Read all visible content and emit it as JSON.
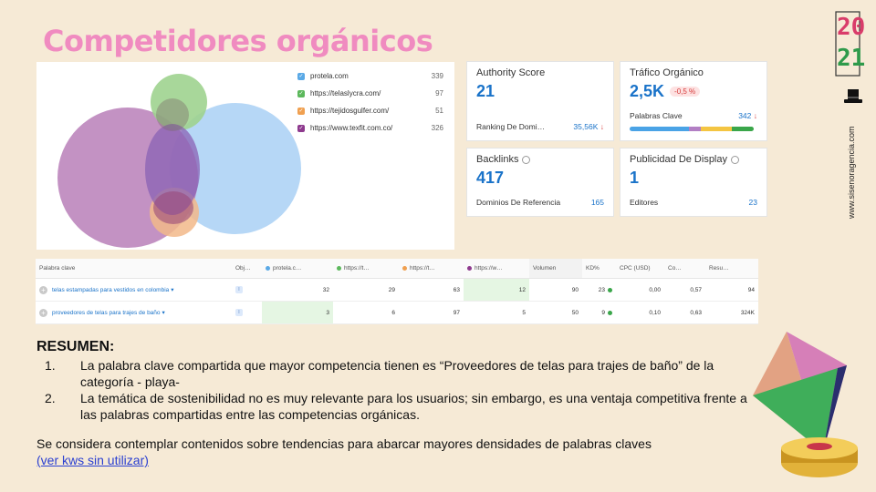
{
  "slide": {
    "title": "Competidores orgánicos",
    "year_top": "20",
    "year_bottom": "21",
    "vertical_url": "www.sisenoragencia.com"
  },
  "venn": {
    "competitors": [
      {
        "domain": "protela.com",
        "count": "339",
        "color": "#5aa9e6"
      },
      {
        "domain": "https://telaslycra.com/",
        "count": "97",
        "color": "#5cb85c"
      },
      {
        "domain": "https://tejidosgulfer.com/",
        "count": "51",
        "color": "#f0a050"
      },
      {
        "domain": "https://www.texfit.com.co/",
        "count": "326",
        "color": "#8e3a8e"
      }
    ]
  },
  "metrics": {
    "authority": {
      "title": "Authority Score",
      "value": "21",
      "sub_label": "Ranking De Domi…",
      "sub_value": "35,56K"
    },
    "traffic": {
      "title": "Tráfico Orgánico",
      "value": "2,5K",
      "badge": "-0,5 %",
      "sub_label": "Palabras Clave",
      "sub_value": "342"
    },
    "backlinks": {
      "title": "Backlinks",
      "value": "417",
      "sub_label": "Dominios De Referencia",
      "sub_value": "165"
    },
    "display": {
      "title": "Publicidad De Display",
      "value": "1",
      "sub_label": "Editores",
      "sub_value": "23"
    }
  },
  "table": {
    "headers": [
      "Palabra clave",
      "Obj…",
      "protela.c…",
      "https://t…",
      "https://t…",
      "https://w…",
      "Volumen",
      "KD%",
      "CPC (USD)",
      "Co…",
      "Resu…"
    ],
    "rows": [
      {
        "keyword": "telas estampadas para vestidos en colombia",
        "intent": "I",
        "p1": "32",
        "p2": "29",
        "p3": "63",
        "p4": "12",
        "volume": "90",
        "kd": "23",
        "cpc": "0,00",
        "com": "0,57",
        "results": "94"
      },
      {
        "keyword": "proveedores de telas para trajes de baño",
        "intent": "I",
        "p1": "3",
        "p2": "6",
        "p3": "97",
        "p4": "5",
        "volume": "50",
        "kd": "9",
        "cpc": "0,10",
        "com": "0,63",
        "results": "324K"
      }
    ]
  },
  "summary": {
    "heading": "RESUMEN:",
    "items": [
      {
        "num": "1.",
        "text": "La palabra clave compartida que mayor competencia tienen es “Proveedores de telas para trajes de baño” de la categoría - playa-"
      },
      {
        "num": "2.",
        "text": "La temática de sostenibilidad no es muy relevante para los usuarios; sin embargo, es una ventaja competitiva frente a las palabras compartidas entre las competencias orgánicas."
      }
    ],
    "note": "Se considera contemplar contenidos sobre tendencias para abarcar mayores densidades de palabras claves",
    "link": "(ver kws sin utilizar)"
  }
}
